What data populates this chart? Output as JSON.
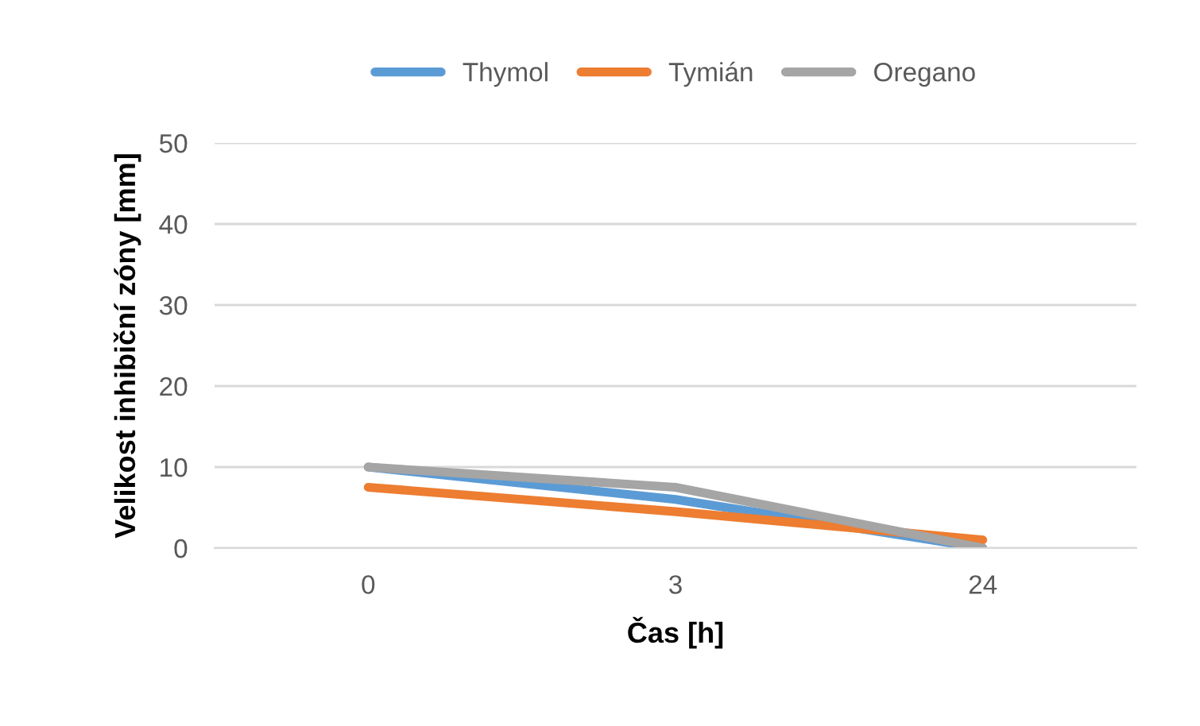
{
  "chart_data": {
    "type": "line",
    "xlabel": "Čas [h]",
    "ylabel": "Velikost inhibiční zóny [mm]",
    "categories": [
      "0",
      "3",
      "24"
    ],
    "series": [
      {
        "name": "Thymol",
        "color": "#5b9bd5",
        "values": [
          10,
          6,
          0
        ]
      },
      {
        "name": "Tymián",
        "color": "#ed7d31",
        "values": [
          7.5,
          4.5,
          1
        ]
      },
      {
        "name": "Oregano",
        "color": "#a5a5a5",
        "values": [
          10,
          7.5,
          0
        ]
      }
    ],
    "ylim": [
      0,
      50
    ],
    "yticks": [
      0,
      10,
      20,
      30,
      40,
      50
    ],
    "grid": "y",
    "legend": "top",
    "marker": "none",
    "line_style": "solid"
  }
}
